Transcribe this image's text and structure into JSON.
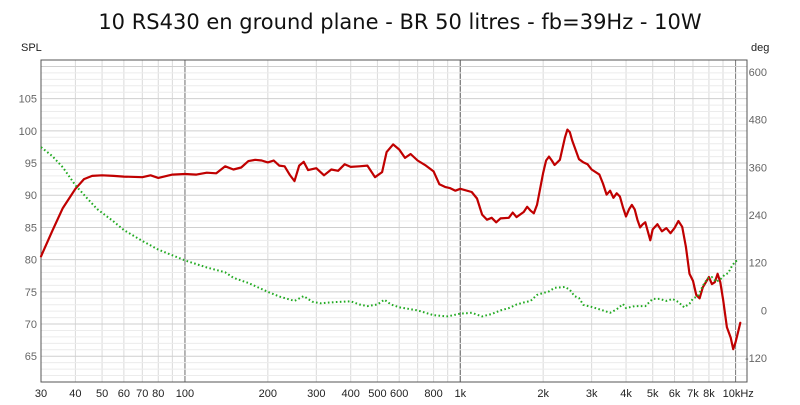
{
  "chart_data": {
    "type": "line",
    "title": "10 RS430 en ground plane - BR 50 litres - fb=39Hz - 10W",
    "y_left_label": "SPL",
    "y_right_label": "deg",
    "x_scale": "log",
    "x_range": [
      30,
      11000
    ],
    "y_left_range": [
      61,
      111
    ],
    "y_right_range": [
      -180,
      630
    ],
    "x_ticks": [
      {
        "value": 30,
        "label": "30"
      },
      {
        "value": 40,
        "label": "40"
      },
      {
        "value": 50,
        "label": "50"
      },
      {
        "value": 60,
        "label": "60"
      },
      {
        "value": 70,
        "label": "70"
      },
      {
        "value": 80,
        "label": "80"
      },
      {
        "value": 100,
        "label": "100"
      },
      {
        "value": 200,
        "label": "200"
      },
      {
        "value": 300,
        "label": "300"
      },
      {
        "value": 400,
        "label": "400"
      },
      {
        "value": 500,
        "label": "500"
      },
      {
        "value": 600,
        "label": "600"
      },
      {
        "value": 800,
        "label": "800"
      },
      {
        "value": 1000,
        "label": "1k"
      },
      {
        "value": 2000,
        "label": "2k"
      },
      {
        "value": 3000,
        "label": "3k"
      },
      {
        "value": 4000,
        "label": "4k"
      },
      {
        "value": 5000,
        "label": "5k"
      },
      {
        "value": 6000,
        "label": "6k"
      },
      {
        "value": 7000,
        "label": "7k"
      },
      {
        "value": 8000,
        "label": "8k"
      },
      {
        "value": 10000,
        "label": "10kHz"
      }
    ],
    "y_left_ticks": [
      {
        "value": 65,
        "label": "65"
      },
      {
        "value": 70,
        "label": "70"
      },
      {
        "value": 75,
        "label": "75"
      },
      {
        "value": 80,
        "label": "80"
      },
      {
        "value": 85,
        "label": "85"
      },
      {
        "value": 90,
        "label": "90"
      },
      {
        "value": 95,
        "label": "95"
      },
      {
        "value": 100,
        "label": "100"
      },
      {
        "value": 105,
        "label": "105"
      }
    ],
    "y_right_ticks": [
      {
        "value": -120,
        "label": "-120"
      },
      {
        "value": 0,
        "label": "0"
      },
      {
        "value": 120,
        "label": "120"
      },
      {
        "value": 240,
        "label": "240"
      },
      {
        "value": 360,
        "label": "360"
      },
      {
        "value": 480,
        "label": "480"
      },
      {
        "value": 600,
        "label": "600"
      }
    ],
    "series": [
      {
        "kind": "magnitude",
        "axis": "left",
        "color": "#c00000",
        "style": "solid",
        "points": [
          [
            30,
            80.5
          ],
          [
            33,
            84.5
          ],
          [
            36,
            88
          ],
          [
            40,
            91
          ],
          [
            43,
            92.5
          ],
          [
            46,
            93
          ],
          [
            50,
            93.1
          ],
          [
            55,
            93
          ],
          [
            60,
            92.9
          ],
          [
            70,
            92.8
          ],
          [
            75,
            93.1
          ],
          [
            80,
            92.7
          ],
          [
            90,
            93.2
          ],
          [
            100,
            93.3
          ],
          [
            110,
            93.2
          ],
          [
            120,
            93.5
          ],
          [
            130,
            93.4
          ],
          [
            140,
            94.5
          ],
          [
            150,
            94
          ],
          [
            160,
            94.3
          ],
          [
            170,
            95.3
          ],
          [
            180,
            95.5
          ],
          [
            190,
            95.4
          ],
          [
            200,
            95.1
          ],
          [
            210,
            95.4
          ],
          [
            220,
            94.6
          ],
          [
            230,
            94.5
          ],
          [
            240,
            93.2
          ],
          [
            250,
            92.2
          ],
          [
            260,
            94.6
          ],
          [
            270,
            95.2
          ],
          [
            280,
            93.9
          ],
          [
            300,
            94.2
          ],
          [
            320,
            93.1
          ],
          [
            340,
            94
          ],
          [
            360,
            93.8
          ],
          [
            380,
            94.8
          ],
          [
            400,
            94.4
          ],
          [
            430,
            94.5
          ],
          [
            460,
            94.6
          ],
          [
            490,
            92.8
          ],
          [
            520,
            93.6
          ],
          [
            540,
            96.7
          ],
          [
            570,
            97.9
          ],
          [
            600,
            97.1
          ],
          [
            630,
            95.8
          ],
          [
            660,
            96.4
          ],
          [
            700,
            95.4
          ],
          [
            750,
            94.6
          ],
          [
            800,
            93.7
          ],
          [
            840,
            91.7
          ],
          [
            880,
            91.3
          ],
          [
            920,
            91.1
          ],
          [
            960,
            90.7
          ],
          [
            1000,
            91
          ],
          [
            1100,
            90.5
          ],
          [
            1150,
            89.5
          ],
          [
            1200,
            87
          ],
          [
            1250,
            86.2
          ],
          [
            1300,
            86.5
          ],
          [
            1350,
            85.8
          ],
          [
            1400,
            86.4
          ],
          [
            1500,
            86.5
          ],
          [
            1550,
            87.3
          ],
          [
            1600,
            86.6
          ],
          [
            1700,
            87.4
          ],
          [
            1750,
            88.2
          ],
          [
            1800,
            87.6
          ],
          [
            1850,
            87.2
          ],
          [
            1900,
            88.5
          ],
          [
            1950,
            91
          ],
          [
            2000,
            93.5
          ],
          [
            2050,
            95.4
          ],
          [
            2100,
            96
          ],
          [
            2150,
            95.4
          ],
          [
            2200,
            94.7
          ],
          [
            2300,
            95.5
          ],
          [
            2400,
            99
          ],
          [
            2450,
            100.2
          ],
          [
            2500,
            99.8
          ],
          [
            2550,
            98.5
          ],
          [
            2700,
            95.6
          ],
          [
            2800,
            95.1
          ],
          [
            2900,
            94.8
          ],
          [
            3000,
            94
          ],
          [
            3200,
            93.2
          ],
          [
            3300,
            91.8
          ],
          [
            3400,
            90.1
          ],
          [
            3500,
            90.7
          ],
          [
            3600,
            89.6
          ],
          [
            3700,
            90.3
          ],
          [
            3800,
            89.8
          ],
          [
            3900,
            88.1
          ],
          [
            4000,
            86.7
          ],
          [
            4100,
            87.8
          ],
          [
            4200,
            88.5
          ],
          [
            4300,
            87.8
          ],
          [
            4400,
            86.2
          ],
          [
            4500,
            85
          ],
          [
            4600,
            85.5
          ],
          [
            4700,
            85.8
          ],
          [
            4800,
            84.4
          ],
          [
            4900,
            83
          ],
          [
            5000,
            84.7
          ],
          [
            5200,
            85.5
          ],
          [
            5400,
            84.4
          ],
          [
            5600,
            84.9
          ],
          [
            5800,
            84.1
          ],
          [
            6000,
            84.9
          ],
          [
            6200,
            86
          ],
          [
            6400,
            85.1
          ],
          [
            6600,
            82
          ],
          [
            6800,
            77.8
          ],
          [
            7000,
            76.7
          ],
          [
            7200,
            74.5
          ],
          [
            7400,
            74
          ],
          [
            7600,
            75.7
          ],
          [
            7800,
            76.5
          ],
          [
            8000,
            77.3
          ],
          [
            8200,
            76.2
          ],
          [
            8400,
            76.5
          ],
          [
            8600,
            77.8
          ],
          [
            8800,
            76.5
          ],
          [
            9000,
            73.9
          ],
          [
            9300,
            69.5
          ],
          [
            9600,
            67.9
          ],
          [
            9800,
            66.1
          ],
          [
            10000,
            67.2
          ],
          [
            10200,
            68.7
          ],
          [
            10400,
            70.2
          ]
        ]
      },
      {
        "kind": "phase",
        "axis": "right",
        "color": "#22aa22",
        "style": "dotted",
        "points": [
          [
            30,
            411
          ],
          [
            33,
            388
          ],
          [
            36,
            360
          ],
          [
            40,
            315
          ],
          [
            44,
            283
          ],
          [
            48,
            255
          ],
          [
            55,
            224
          ],
          [
            60,
            202
          ],
          [
            70,
            175
          ],
          [
            80,
            153
          ],
          [
            100,
            126
          ],
          [
            120,
            108
          ],
          [
            140,
            96
          ],
          [
            150,
            82
          ],
          [
            170,
            69
          ],
          [
            200,
            47
          ],
          [
            220,
            35
          ],
          [
            250,
            24
          ],
          [
            270,
            36
          ],
          [
            290,
            22
          ],
          [
            310,
            18
          ],
          [
            350,
            21
          ],
          [
            400,
            23
          ],
          [
            430,
            15
          ],
          [
            460,
            11
          ],
          [
            500,
            15
          ],
          [
            530,
            27
          ],
          [
            560,
            15
          ],
          [
            600,
            8
          ],
          [
            700,
            0
          ],
          [
            800,
            -12
          ],
          [
            900,
            -15
          ],
          [
            1000,
            -8
          ],
          [
            1100,
            -6
          ],
          [
            1200,
            -15
          ],
          [
            1300,
            -9
          ],
          [
            1400,
            0
          ],
          [
            1500,
            6
          ],
          [
            1600,
            15
          ],
          [
            1700,
            20
          ],
          [
            1800,
            24
          ],
          [
            1900,
            39
          ],
          [
            2000,
            44
          ],
          [
            2100,
            48
          ],
          [
            2200,
            57
          ],
          [
            2300,
            58
          ],
          [
            2400,
            59
          ],
          [
            2500,
            52
          ],
          [
            2600,
            36
          ],
          [
            2700,
            31
          ],
          [
            2800,
            14
          ],
          [
            3000,
            9
          ],
          [
            3200,
            3
          ],
          [
            3500,
            -6
          ],
          [
            3700,
            3
          ],
          [
            3900,
            16
          ],
          [
            4000,
            6
          ],
          [
            4300,
            11
          ],
          [
            4700,
            11
          ],
          [
            5000,
            29
          ],
          [
            5300,
            29
          ],
          [
            5600,
            24
          ],
          [
            5900,
            29
          ],
          [
            6200,
            21
          ],
          [
            6500,
            8
          ],
          [
            6800,
            17
          ],
          [
            7000,
            30
          ],
          [
            7300,
            36
          ],
          [
            7600,
            62
          ],
          [
            7900,
            80
          ],
          [
            8200,
            84
          ],
          [
            8500,
            72
          ],
          [
            8800,
            78
          ],
          [
            9100,
            89
          ],
          [
            9400,
            94
          ],
          [
            9700,
            112
          ],
          [
            10000,
            124
          ],
          [
            10300,
            125
          ]
        ]
      }
    ]
  }
}
